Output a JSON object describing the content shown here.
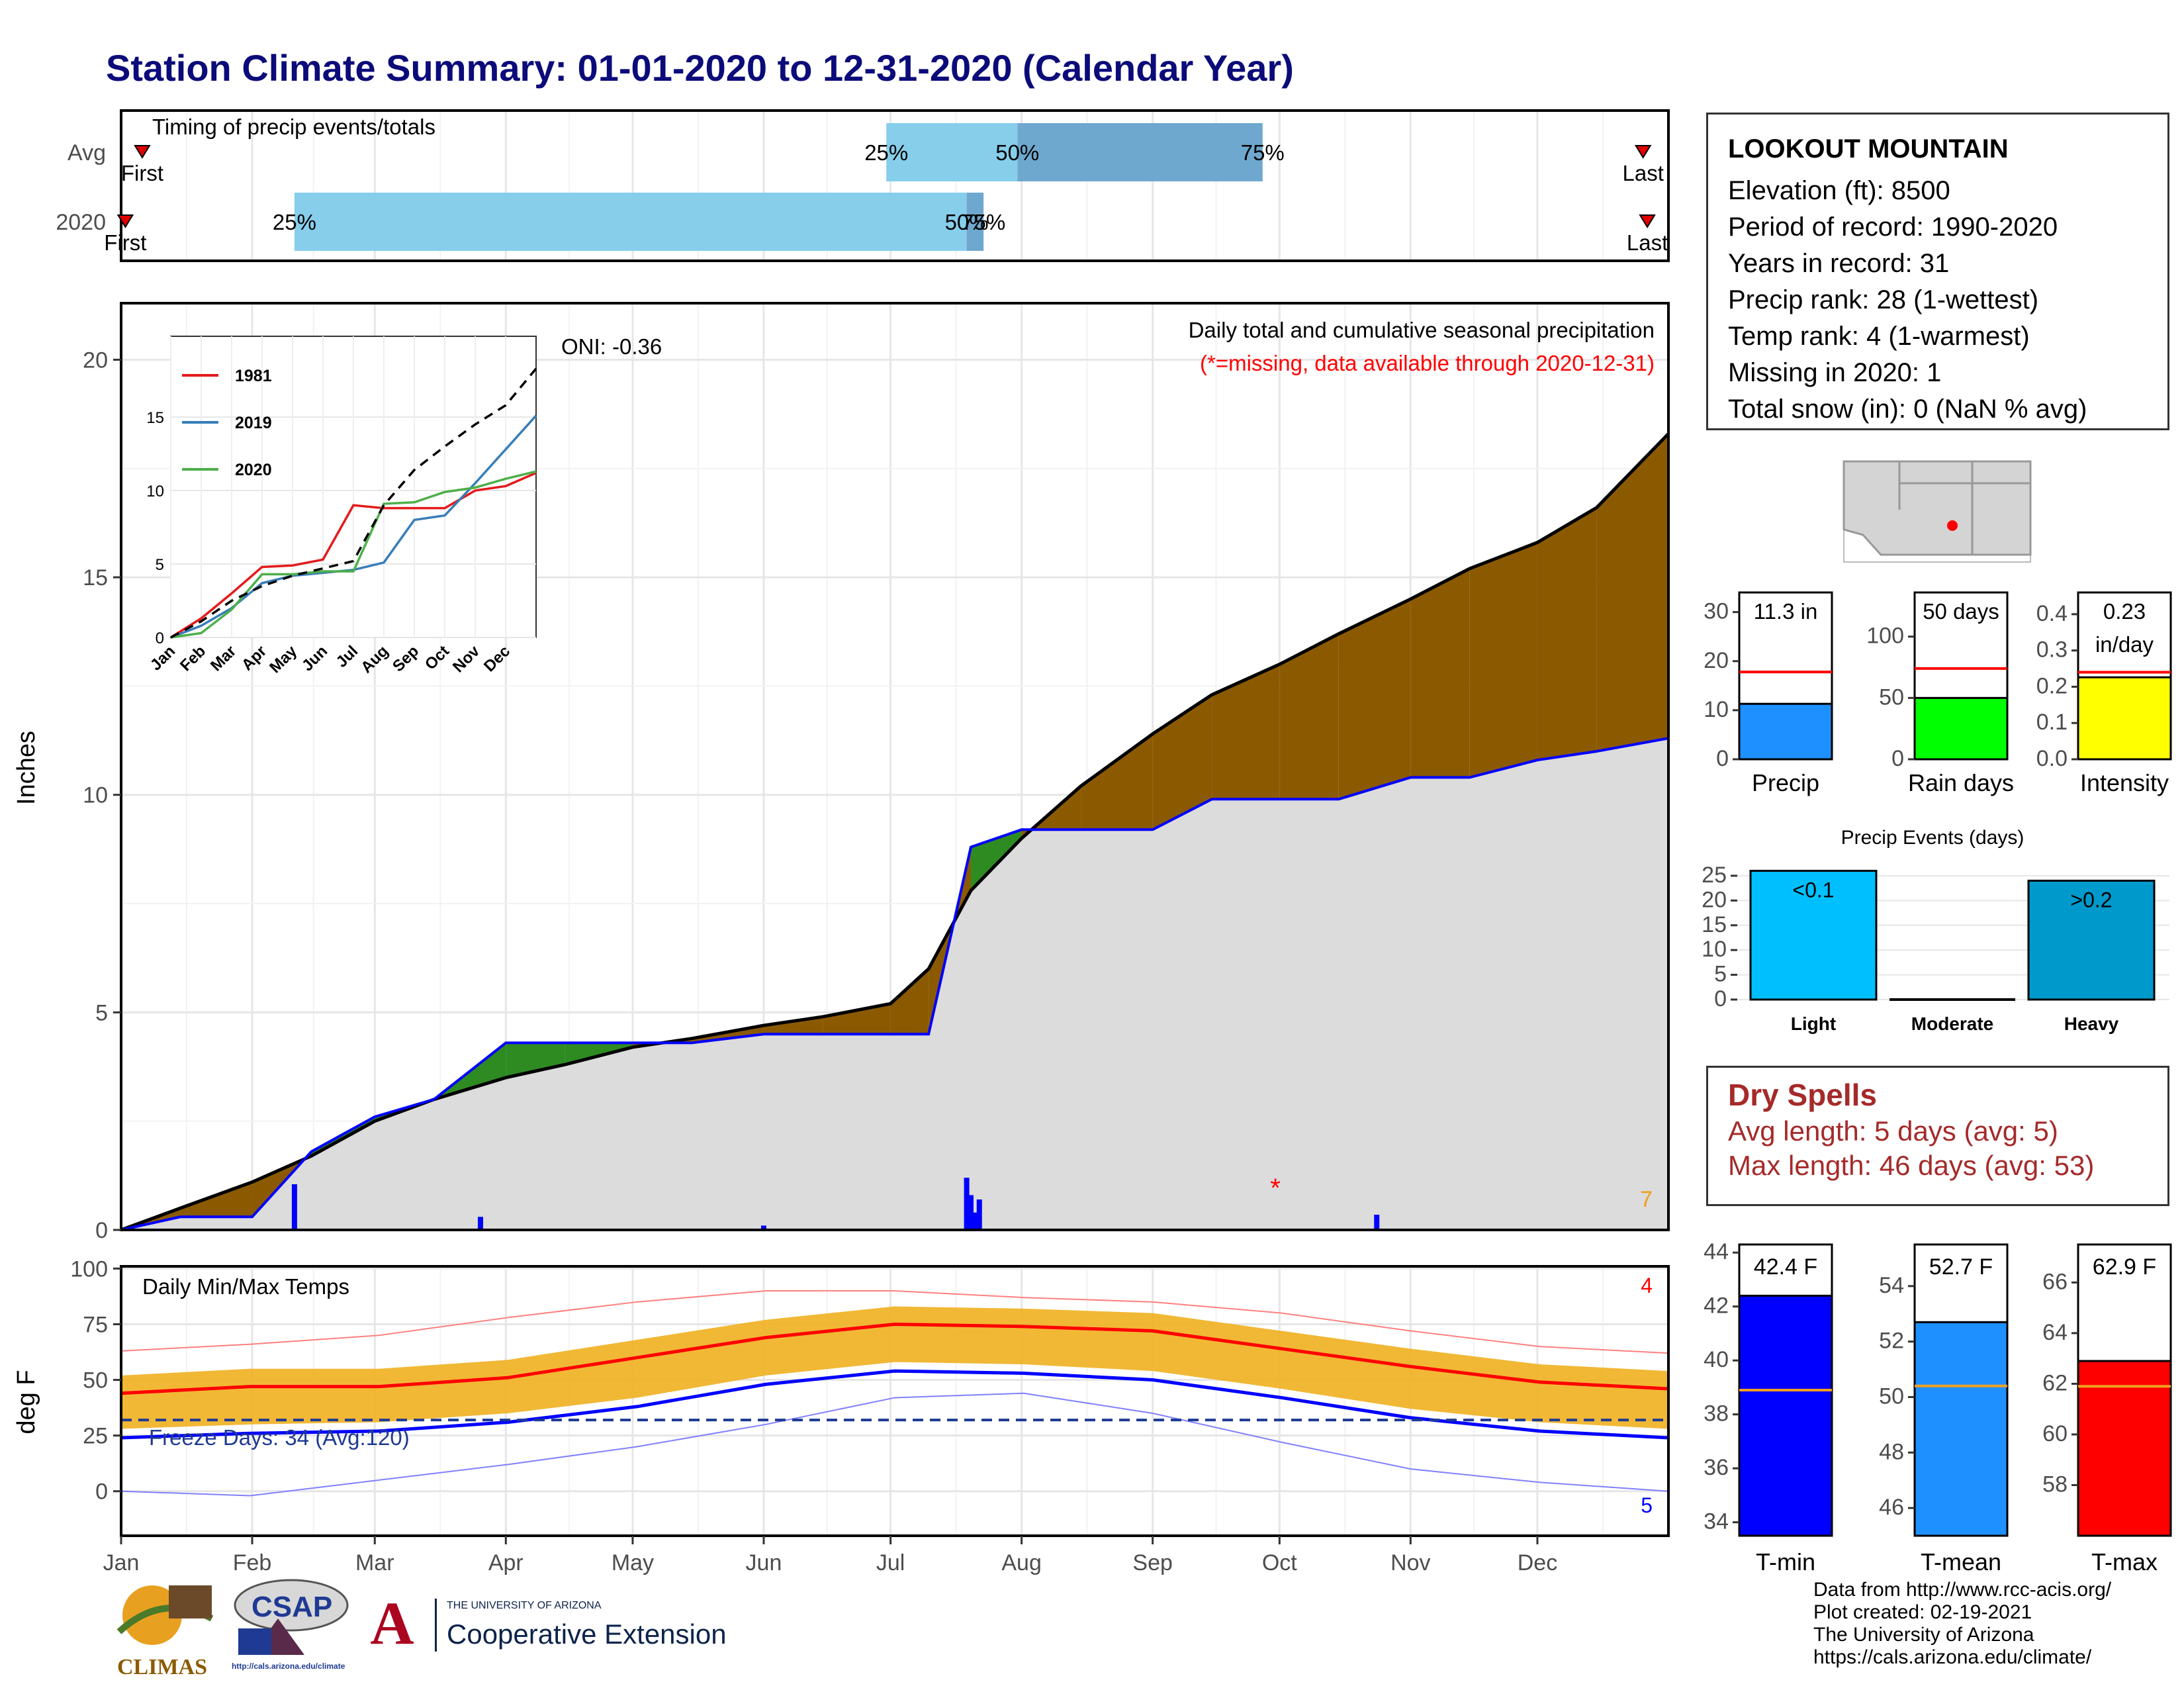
{
  "title": "Station Climate Summary: 01-01-2020 to 12-31-2020 (Calendar Year)",
  "colors": {
    "title": "#0b0b7a",
    "cum_2020": "#0000ff",
    "cum_avg": "#000000",
    "above_avg": "#2e8b22",
    "below_avg": "#8b5a00",
    "fill_grey": "#dcdcdc",
    "daily_bar": "#0000ff",
    "temp_range": "#f0b020",
    "tmax": "#ff0000",
    "tmin": "#0000ff",
    "record_high": "#ff8080",
    "record_low": "#8080ff"
  },
  "timing_panel": {
    "title": "Timing of precip events/totals",
    "rows": [
      {
        "label": "Avg",
        "first_label": "First",
        "last_label": "Last",
        "q25_label": "25%",
        "q50_label": "50%",
        "q75_label": "75%",
        "first": "01-06",
        "q25": "06-30",
        "q50": "07-31",
        "q75": "09-27",
        "last": "12-26"
      },
      {
        "label": "2020",
        "first_label": "First",
        "last_label": "Last",
        "q25_label": "25%",
        "q50_label": "50%",
        "q75_label": "75%",
        "first": "01-02",
        "q25": "02-11",
        "q50": "07-19",
        "q75": "07-23",
        "last": "12-27"
      }
    ]
  },
  "main_panel": {
    "ylabel": "Inches",
    "yticks": [
      "0",
      "5",
      "10",
      "15",
      "20"
    ],
    "note_title": "Daily total and cumulative seasonal precipitation",
    "note_missing": "(*=missing, data available through 2020-12-31)",
    "oni_text": "ONI: -0.36",
    "corner_count": "7",
    "inset": {
      "legend": [
        {
          "name": "1981",
          "color": "#e41a1c"
        },
        {
          "name": "2019",
          "color": "#377eb8"
        },
        {
          "name": "2020",
          "color": "#4daf4a"
        }
      ],
      "yticks": [
        "0",
        "5",
        "10",
        "15"
      ],
      "months": [
        "Jan",
        "Feb",
        "Mar",
        "Apr",
        "May",
        "Jun",
        "Jul",
        "Aug",
        "Sep",
        "Oct",
        "Nov",
        "Dec"
      ]
    }
  },
  "temp_panel": {
    "ylabel": "deg F",
    "title": "Daily Min/Max Temps",
    "freeze_text": "Freeze Days: 34 (Avg:120)",
    "record_high_count": "4",
    "record_low_count": "5",
    "yticks": [
      "0",
      "25",
      "50",
      "75",
      "100"
    ]
  },
  "months": [
    "Jan",
    "Feb",
    "Mar",
    "Apr",
    "May",
    "Jun",
    "Jul",
    "Aug",
    "Sep",
    "Oct",
    "Nov",
    "Dec"
  ],
  "station": {
    "name": "LOOKOUT MOUNTAIN",
    "lines": [
      "Elevation (ft): 8500",
      "Period of record: 1990-2020",
      "Years in record: 31",
      "Precip rank: 28 (1-wettest)",
      "Temp rank: 4 (1-warmest)",
      "Missing in 2020: 1",
      "Total snow (in): 0 (NaN % avg)"
    ]
  },
  "summary_bars": [
    {
      "label": "Precip",
      "value_label": "11.3 in",
      "value": 11.3,
      "avg": 17.8,
      "ylim": [
        0,
        34
      ],
      "yticks": [
        "0",
        "10",
        "20",
        "30"
      ],
      "color": "#1e90ff"
    },
    {
      "label": "Rain days",
      "value_label": "50 days",
      "value": 50,
      "avg": 74,
      "ylim": [
        0,
        136
      ],
      "yticks": [
        "0",
        "50",
        "100"
      ],
      "color": "#00ff00"
    },
    {
      "label": "Intensity",
      "value_label": "0.23",
      "value_label2": "in/day",
      "value": 0.226,
      "avg": 0.24,
      "ylim": [
        0,
        0.46
      ],
      "yticks": [
        "0.0",
        "0.1",
        "0.2",
        "0.3",
        "0.4"
      ],
      "color": "#ffff00"
    }
  ],
  "events": {
    "title": "Precip Events (days)",
    "yticks": [
      "0",
      "5",
      "10",
      "15",
      "20",
      "25"
    ],
    "bars": [
      {
        "label": "Light",
        "value_label": "<0.1",
        "value": 26,
        "color": "#00bfff"
      },
      {
        "label": "Moderate",
        "value_label": "",
        "value": 0,
        "color": "#00bfff"
      },
      {
        "label": "Heavy",
        "value_label": ">0.2",
        "value": 24,
        "color": "#0099cc"
      }
    ]
  },
  "dry_spells": {
    "title": "Dry Spells",
    "avg_line": "Avg length: 5 days (avg: 5)",
    "max_line": "Max length: 46 days (avg: 53)"
  },
  "temp_bars": [
    {
      "label": "T-min",
      "value_label": "42.4 F",
      "value": 42.4,
      "avg": 38.9,
      "ylim": [
        33.5,
        44.3
      ],
      "yticks": [
        "34",
        "36",
        "38",
        "40",
        "42",
        "44"
      ],
      "color": "#0000ff"
    },
    {
      "label": "T-mean",
      "value_label": "52.7 F",
      "value": 52.7,
      "avg": 50.4,
      "ylim": [
        45,
        55.5
      ],
      "yticks": [
        "46",
        "48",
        "50",
        "52",
        "54"
      ],
      "color": "#1e90ff"
    },
    {
      "label": "T-max",
      "value_label": "62.9 F",
      "value": 62.9,
      "avg": 61.9,
      "ylim": [
        56,
        67.5
      ],
      "yticks": [
        "58",
        "60",
        "62",
        "64",
        "66"
      ],
      "color": "#ff0000"
    }
  ],
  "credits": [
    "Data from http://www.rcc-acis.org/",
    "Plot created: 02-19-2021",
    "The University of Arizona",
    "https://cals.arizona.edu/climate/"
  ],
  "logos": {
    "climas": "CLIMAS",
    "csap": "CSAP",
    "csap_url": "http://cals.arizona.edu/climate",
    "ua_top": "THE UNIVERSITY OF ARIZONA",
    "ua_bottom": "Cooperative Extension"
  },
  "chart_data": [
    {
      "type": "line",
      "title": "Daily total and cumulative seasonal precipitation",
      "ylabel": "Inches",
      "ylim": [
        0,
        21.3
      ],
      "x": [
        "01-01",
        "01-15",
        "02-01",
        "02-15",
        "03-01",
        "03-15",
        "04-01",
        "04-15",
        "05-01",
        "05-15",
        "06-01",
        "06-15",
        "07-01",
        "07-10",
        "07-20",
        "08-01",
        "08-15",
        "09-01",
        "09-15",
        "10-01",
        "10-15",
        "11-01",
        "11-15",
        "12-01",
        "12-15",
        "12-31"
      ],
      "series": [
        {
          "name": "2020",
          "values": [
            0,
            0.3,
            0.3,
            1.8,
            2.6,
            3.0,
            4.3,
            4.3,
            4.3,
            4.3,
            4.5,
            4.5,
            4.5,
            4.5,
            8.8,
            9.2,
            9.2,
            9.2,
            9.9,
            9.9,
            9.9,
            10.4,
            10.4,
            10.8,
            11.0,
            11.3
          ]
        },
        {
          "name": "Avg",
          "values": [
            0,
            0.5,
            1.1,
            1.7,
            2.5,
            3.0,
            3.5,
            3.8,
            4.2,
            4.4,
            4.7,
            4.9,
            5.2,
            6.0,
            7.8,
            9.0,
            10.2,
            11.4,
            12.3,
            13.0,
            13.7,
            14.5,
            15.2,
            15.8,
            16.6,
            18.3
          ]
        }
      ],
      "daily_precip": [
        {
          "date": "02-11",
          "value": 1.05
        },
        {
          "date": "07-19",
          "value": 1.2
        },
        {
          "date": "07-20",
          "value": 0.8
        },
        {
          "date": "07-22",
          "value": 0.7
        },
        {
          "date": "07-21",
          "value": 0.4
        },
        {
          "date": "10-24",
          "value": 0.35
        },
        {
          "date": "03-26",
          "value": 0.3
        },
        {
          "date": "06-01",
          "value": 0.1
        }
      ]
    },
    {
      "type": "line",
      "title": "",
      "ylim": [
        0,
        20.5
      ],
      "x": [
        "Jan",
        "Feb",
        "Mar",
        "Apr",
        "May",
        "Jun",
        "Jul",
        "Aug",
        "Sep",
        "Oct",
        "Nov",
        "Dec",
        "Dec-end"
      ],
      "series": [
        {
          "name": "1981",
          "values": [
            0,
            1.3,
            3.0,
            4.8,
            4.9,
            5.3,
            9.0,
            8.8,
            8.8,
            8.8,
            10.0,
            10.3,
            11.2
          ]
        },
        {
          "name": "2019",
          "values": [
            0,
            0.8,
            2.0,
            3.7,
            4.2,
            4.4,
            4.6,
            5.1,
            8.0,
            8.3,
            10.5,
            12.8,
            15.1
          ]
        },
        {
          "name": "2020",
          "values": [
            0,
            0.3,
            1.9,
            4.3,
            4.3,
            4.5,
            4.5,
            9.1,
            9.2,
            9.9,
            10.2,
            10.8,
            11.3
          ]
        },
        {
          "name": "Avg",
          "values": [
            0,
            1.1,
            2.5,
            3.5,
            4.2,
            4.7,
            5.2,
            9.0,
            11.4,
            13.0,
            14.5,
            15.8,
            18.3
          ]
        }
      ]
    },
    {
      "type": "line",
      "title": "Daily Min/Max Temps",
      "ylabel": "deg F",
      "ylim": [
        -20,
        101
      ],
      "x": [
        "Jan",
        "Feb",
        "Mar",
        "Apr",
        "May",
        "Jun",
        "Jul",
        "Aug",
        "Sep",
        "Oct",
        "Nov",
        "Dec",
        "Dec-end"
      ],
      "series": [
        {
          "name": "Avg Tmax",
          "values": [
            44,
            47,
            47,
            51,
            60,
            69,
            75,
            74,
            72,
            64,
            56,
            49,
            46
          ]
        },
        {
          "name": "Avg Tmin",
          "values": [
            24,
            26,
            27,
            31,
            38,
            48,
            54,
            53,
            50,
            42,
            33,
            27,
            24
          ]
        },
        {
          "name": "Record high",
          "values": [
            63,
            66,
            70,
            78,
            85,
            90,
            90,
            87,
            85,
            80,
            72,
            65,
            62
          ]
        },
        {
          "name": "Record low",
          "values": [
            0,
            -2,
            5,
            12,
            20,
            30,
            42,
            44,
            35,
            22,
            10,
            4,
            0
          ]
        }
      ],
      "freeze_line": 32
    },
    {
      "type": "bar",
      "categories": [
        "Light",
        "Moderate",
        "Heavy"
      ],
      "values": [
        26,
        0,
        24
      ],
      "title": "Precip Events (days)"
    }
  ]
}
